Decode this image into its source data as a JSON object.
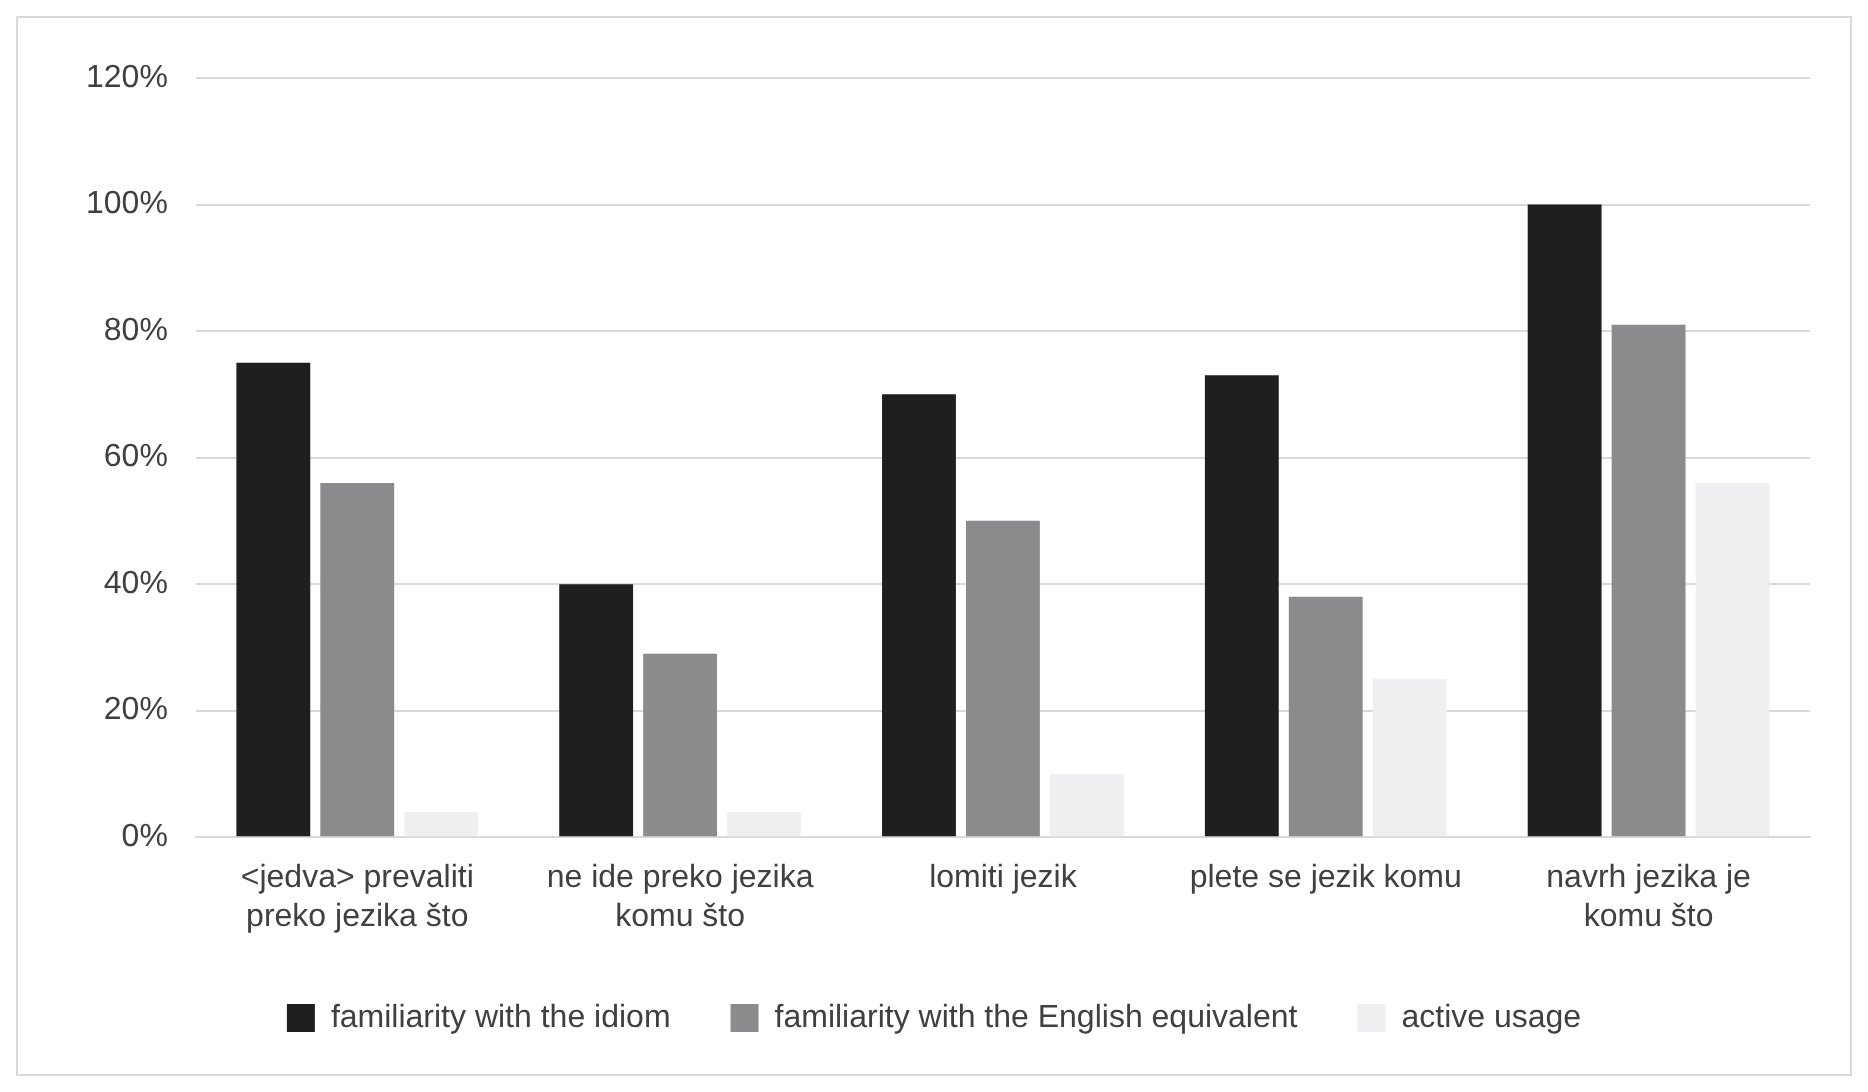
{
  "chart_data": {
    "type": "bar",
    "categories": [
      "<jedva> prevaliti preko jezika što",
      "ne ide preko jezika komu što",
      "lomiti jezik",
      "plete se jezik komu",
      "navrh jezika je komu što"
    ],
    "series": [
      {
        "name": "familiarity with the idiom",
        "color": "#1f1f1f",
        "values": [
          75,
          40,
          70,
          73,
          100
        ]
      },
      {
        "name": "familiarity with the English equivalent",
        "color": "#8b8b8d",
        "values": [
          56,
          29,
          50,
          38,
          81
        ]
      },
      {
        "name": "active usage",
        "color": "#efeff1",
        "values": [
          4,
          4,
          10,
          25,
          56
        ]
      }
    ],
    "ylim": [
      0,
      120
    ],
    "yticks": [
      {
        "value": 0,
        "label": "0%"
      },
      {
        "value": 20,
        "label": "20%"
      },
      {
        "value": 40,
        "label": "40%"
      },
      {
        "value": 60,
        "label": "60%"
      },
      {
        "value": 80,
        "label": "80%"
      },
      {
        "value": 100,
        "label": "100%"
      },
      {
        "value": 120,
        "label": "120%"
      }
    ],
    "grid": "y",
    "legend": "bottom"
  }
}
